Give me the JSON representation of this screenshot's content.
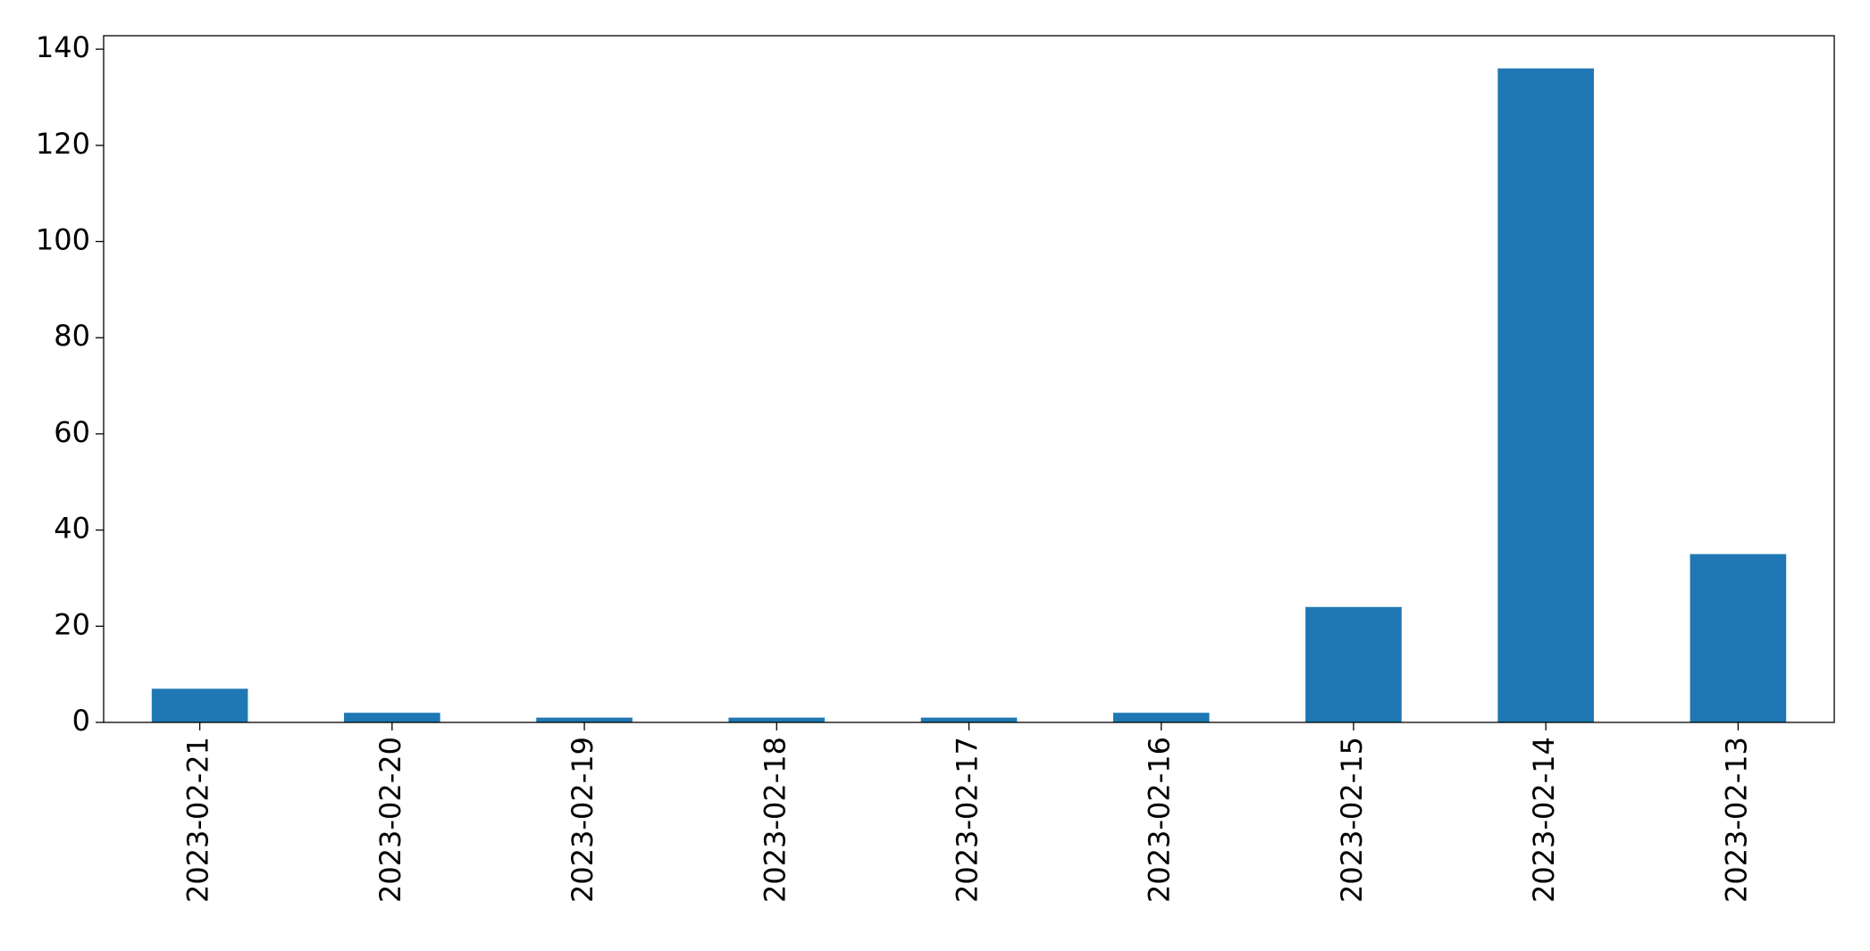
{
  "chart_data": {
    "type": "bar",
    "categories": [
      "2023-02-21",
      "2023-02-20",
      "2023-02-19",
      "2023-02-18",
      "2023-02-17",
      "2023-02-16",
      "2023-02-15",
      "2023-02-14",
      "2023-02-13"
    ],
    "values": [
      7,
      2,
      1,
      1,
      1,
      2,
      24,
      136,
      35
    ],
    "color": "#1f77b4",
    "ylim": [
      0,
      142.8
    ],
    "yticks": [
      0,
      20,
      40,
      60,
      80,
      100,
      120,
      140
    ],
    "grid": false
  }
}
